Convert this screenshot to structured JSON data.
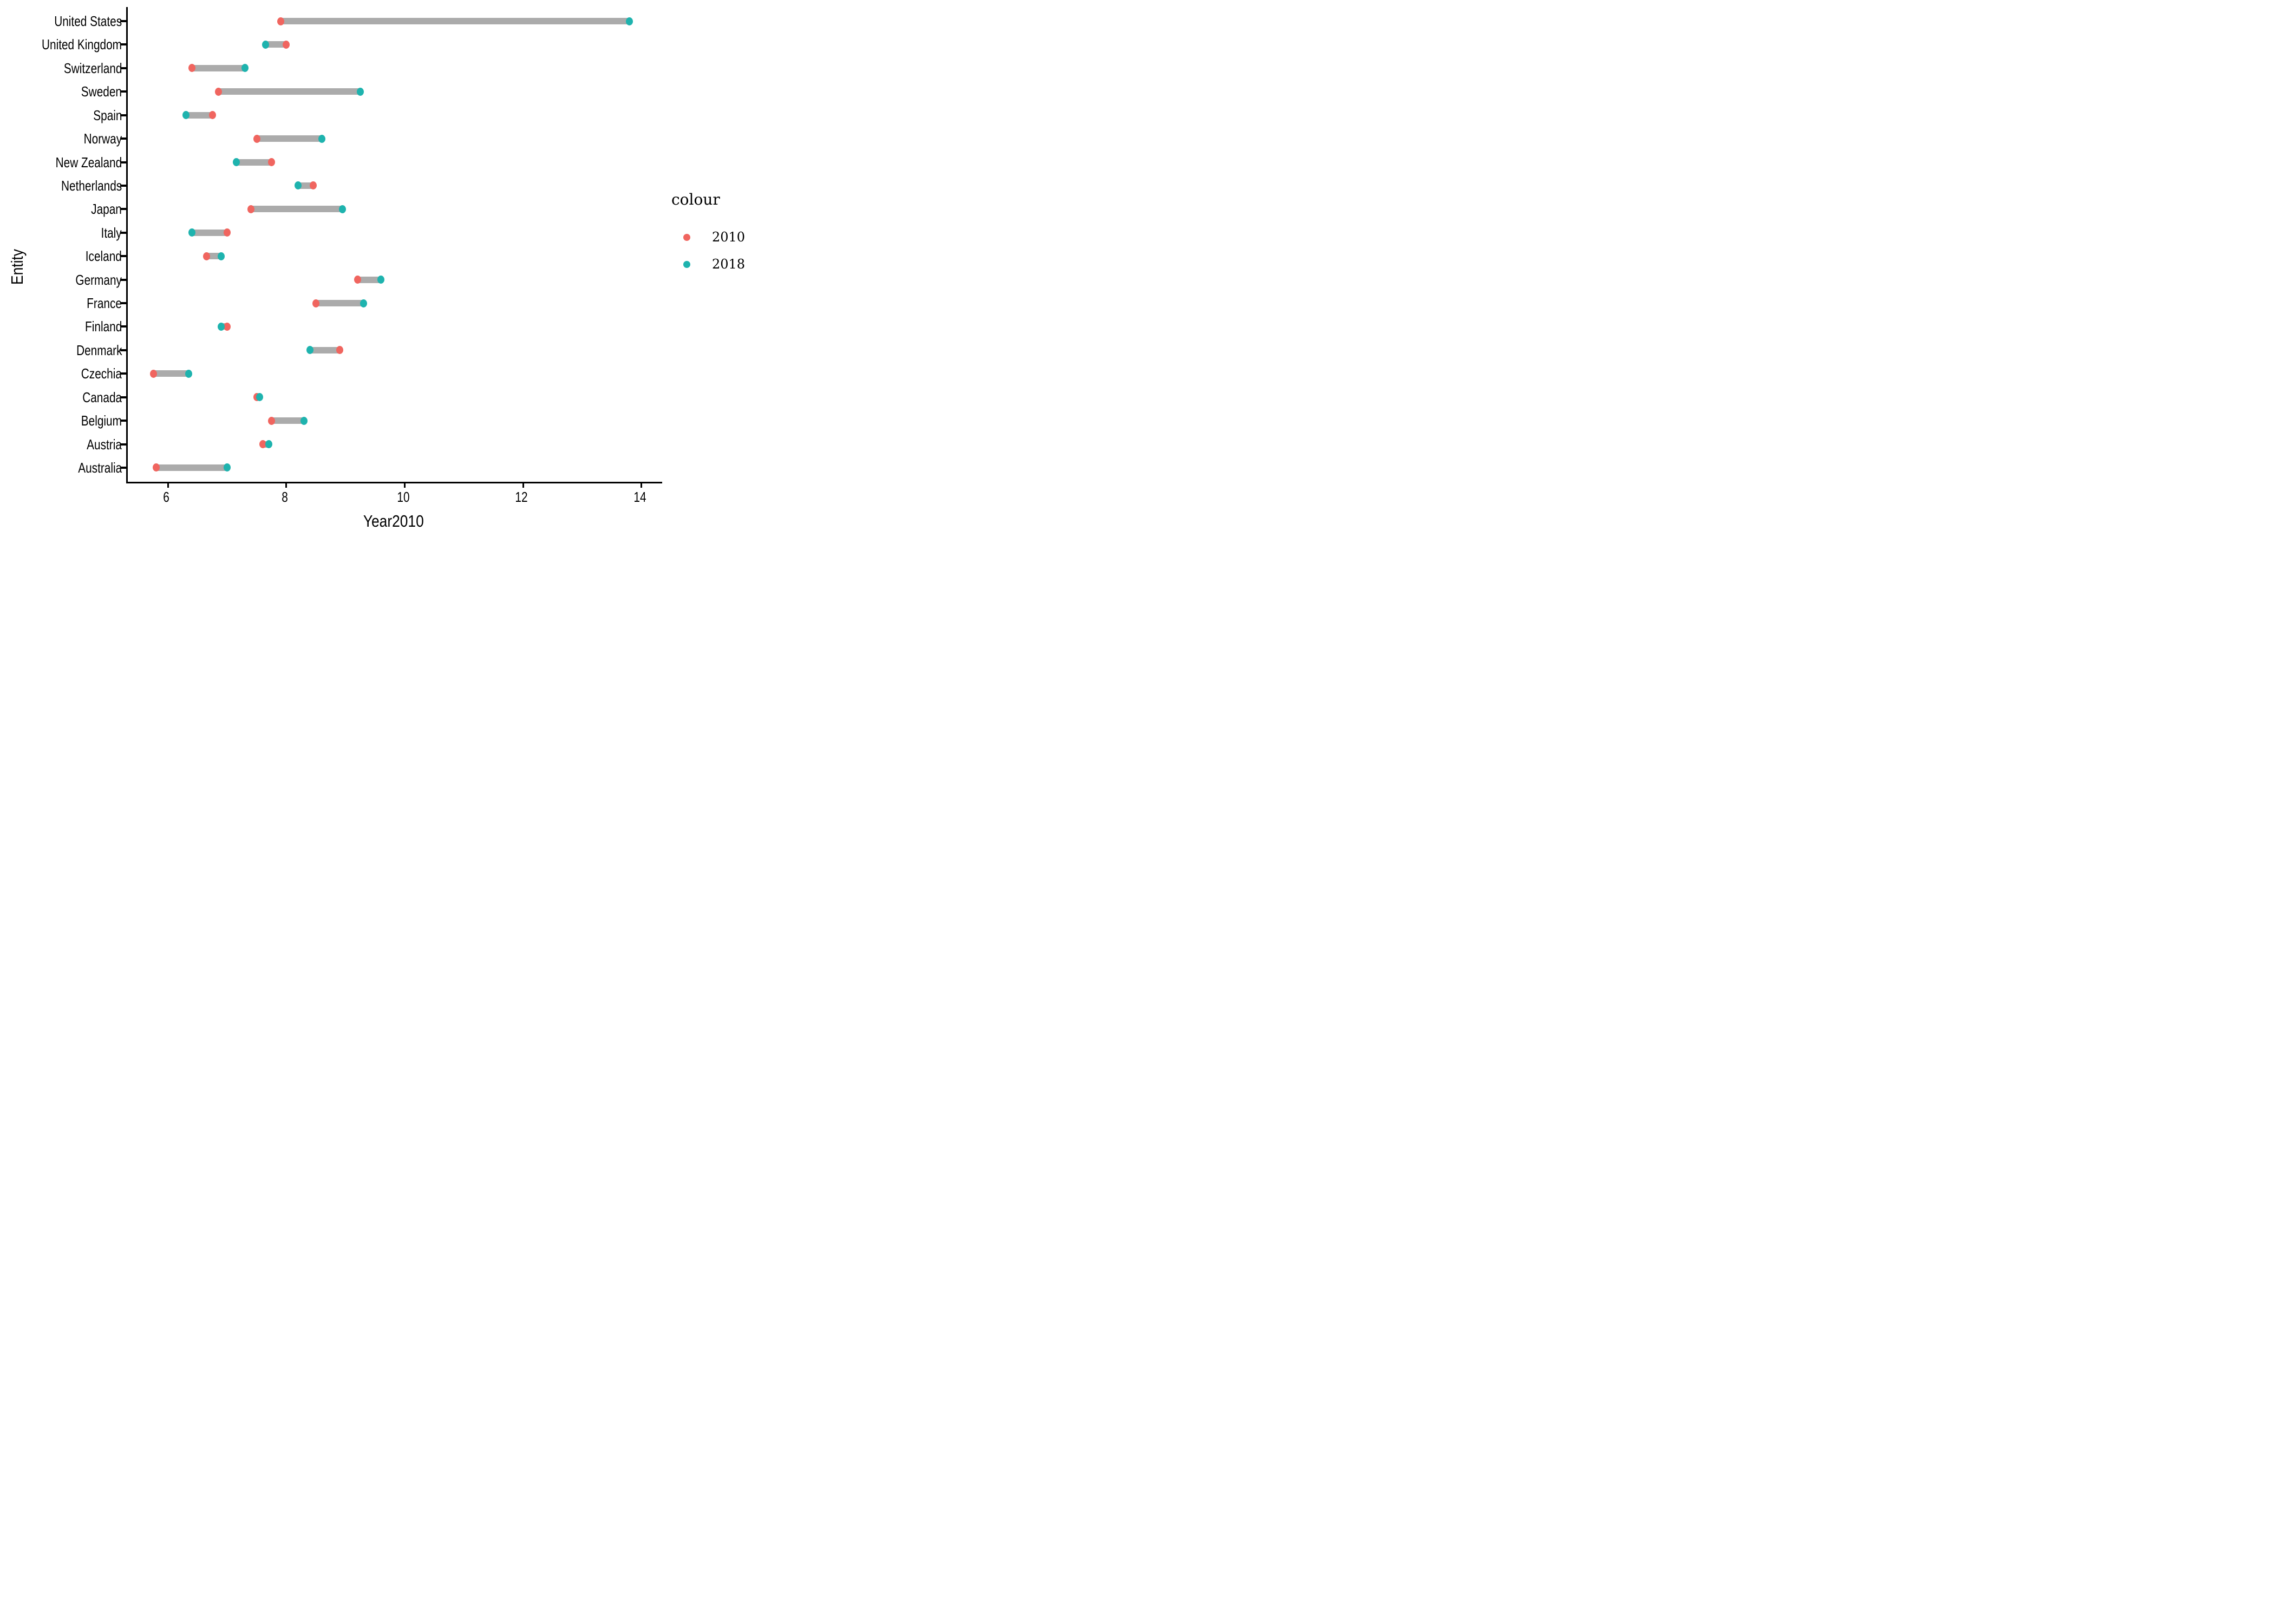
{
  "axis": {
    "x_title": "Year2010",
    "y_title": "Entity"
  },
  "legend": {
    "title": "colour",
    "entries": [
      {
        "label": "2010",
        "color": "#F0655F"
      },
      {
        "label": "2018",
        "color": "#1EB3AE"
      }
    ]
  },
  "chart_data": {
    "type": "dumbbell",
    "orientation": "horizontal",
    "title": "",
    "xlabel": "Year2010",
    "ylabel": "Entity",
    "xlim": [
      5.32,
      14.35
    ],
    "xticks": [
      6,
      8,
      10,
      12,
      14
    ],
    "grid": false,
    "legend_position": "right",
    "legend_title": "colour",
    "connector_color": "#ABABAB",
    "axis_color": "#000000",
    "categories": [
      "United States",
      "United Kingdom",
      "Switzerland",
      "Sweden",
      "Spain",
      "Norway",
      "New Zealand",
      "Netherlands",
      "Japan",
      "Italy",
      "Iceland",
      "Germany",
      "France",
      "Finland",
      "Denmark",
      "Czechia",
      "Canada",
      "Belgium",
      "Austria",
      "Australia"
    ],
    "series": [
      {
        "name": "2010",
        "color": "#F0655F",
        "values": [
          7.9,
          8.0,
          6.4,
          6.85,
          6.75,
          7.5,
          7.75,
          8.45,
          7.4,
          7.0,
          6.65,
          9.2,
          8.5,
          7.0,
          8.9,
          5.75,
          7.5,
          7.75,
          7.6,
          5.8
        ]
      },
      {
        "name": "2018",
        "color": "#1EB3AE",
        "values": [
          13.8,
          7.65,
          7.3,
          9.25,
          6.3,
          8.6,
          7.15,
          8.2,
          8.95,
          6.4,
          6.9,
          9.6,
          9.3,
          6.9,
          8.4,
          6.35,
          7.55,
          8.3,
          7.7,
          7.0
        ]
      }
    ]
  }
}
